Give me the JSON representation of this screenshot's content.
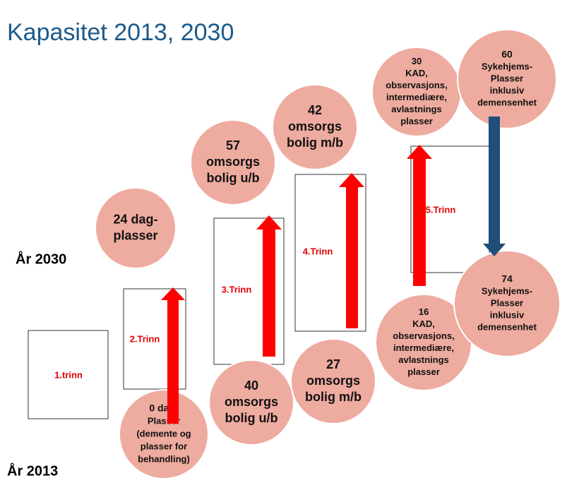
{
  "title": "Kapasitet 2013, 2030",
  "years": [
    "År 2030",
    "År 2013"
  ],
  "steps": [
    "1.trinn",
    "2.Trinn",
    "3.Trinn",
    "4.Trinn",
    "5.Trinn"
  ],
  "circles_2030": [
    {
      "lines": [
        "24 dag-",
        "plasser"
      ]
    },
    {
      "lines": [
        "57",
        "omsorgs",
        "bolig u/b"
      ]
    },
    {
      "lines": [
        "42",
        "omsorgs",
        "bolig m/b"
      ]
    },
    {
      "lines": [
        "30",
        "KAD,",
        "observasjons,",
        "intermediære,",
        "avlastnings",
        "plasser"
      ]
    },
    {
      "lines": [
        "60",
        "Sykehjems-",
        "Plasser",
        "inklusiv",
        "demensenhet"
      ]
    }
  ],
  "circles_2013": [
    {
      "lines": [
        "0 dag-",
        "Plasser",
        "(demente og",
        "plasser for",
        "behandling)"
      ]
    },
    {
      "lines": [
        "40",
        "omsorgs",
        "bolig u/b"
      ]
    },
    {
      "lines": [
        "27",
        "omsorgs",
        "bolig m/b"
      ]
    },
    {
      "lines": [
        "16",
        "KAD,",
        "observasjons,",
        "intermediære,",
        "avlastnings",
        "plasser"
      ]
    },
    {
      "lines": [
        "74",
        "Sykehjems-",
        "Plasser",
        "inklusiv",
        "demensenhet"
      ]
    }
  ]
}
